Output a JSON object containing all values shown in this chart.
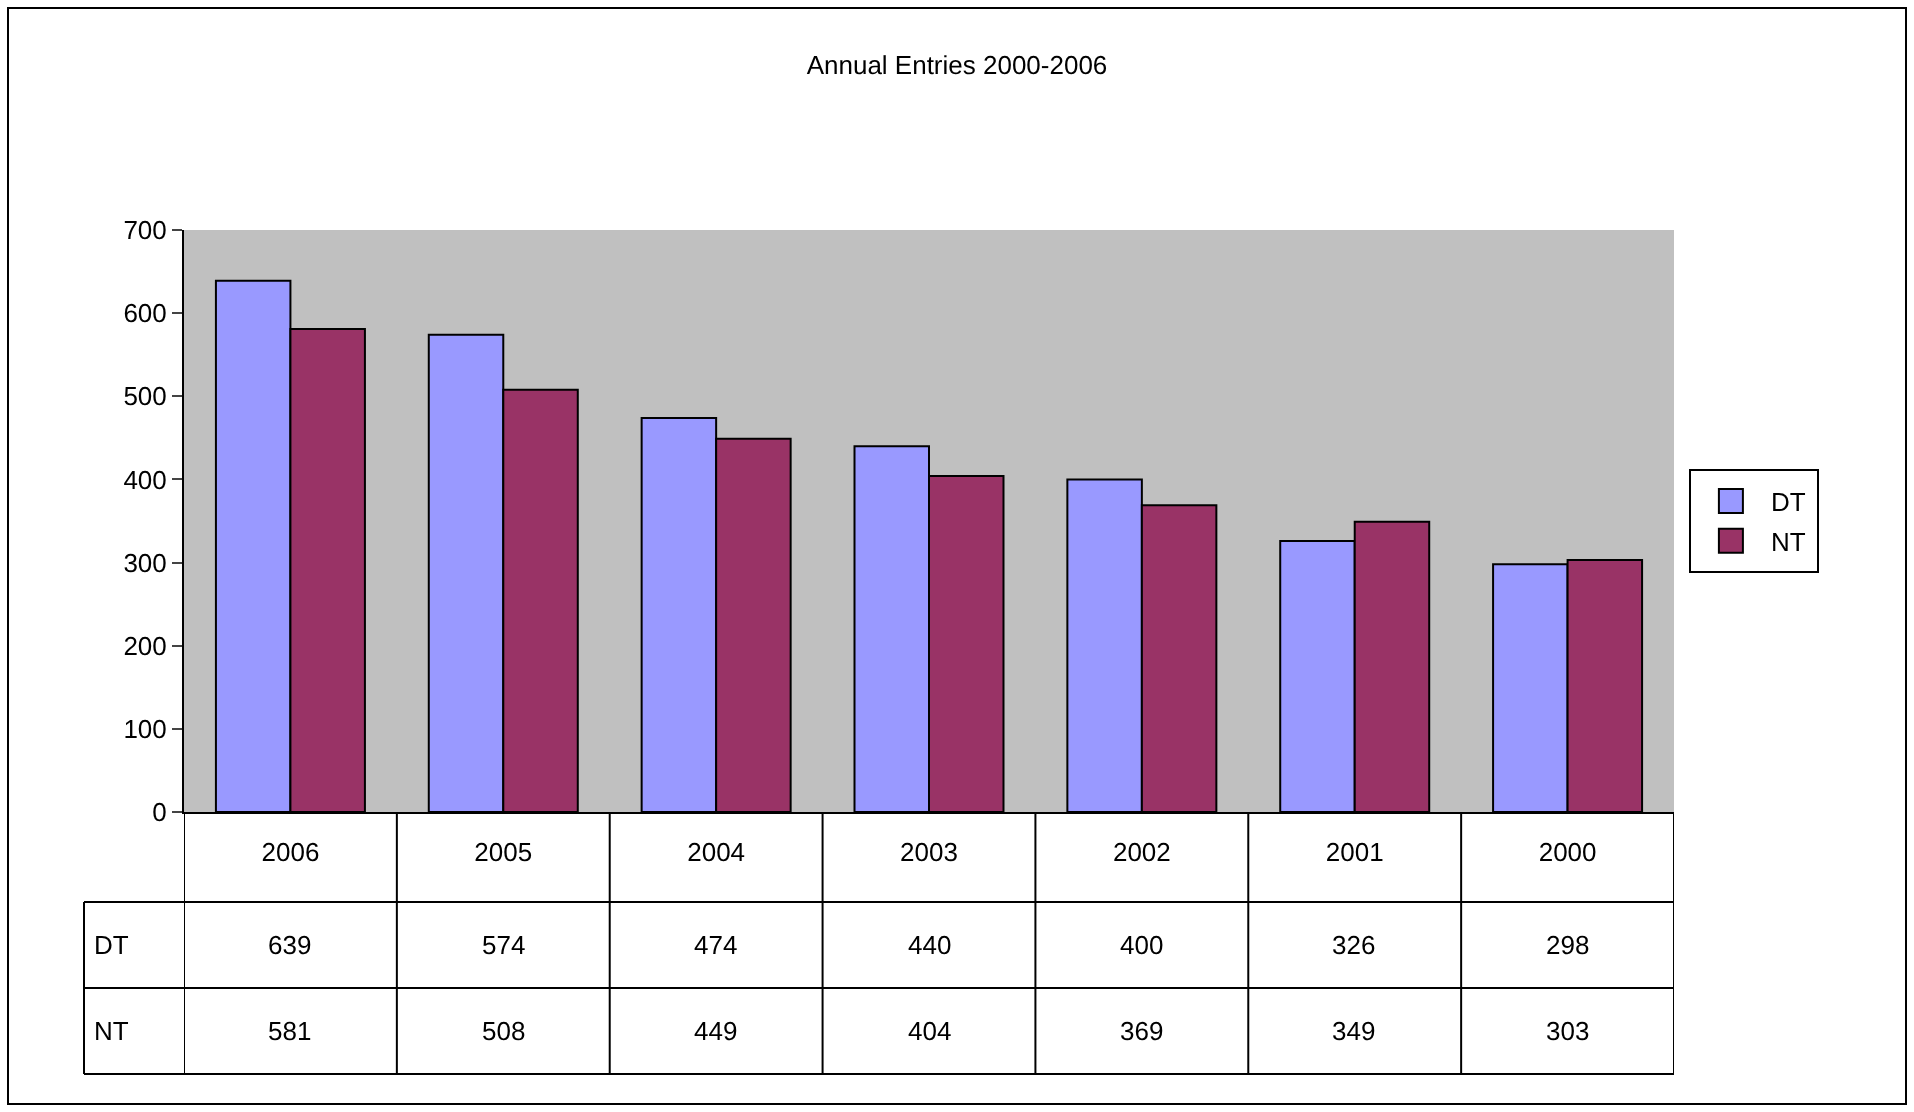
{
  "chart_data": {
    "type": "bar",
    "title": "Annual Entries 2000-2006",
    "categories": [
      "2006",
      "2005",
      "2004",
      "2003",
      "2002",
      "2001",
      "2000"
    ],
    "series": [
      {
        "name": "DT",
        "color": "#9999ff",
        "values": [
          639,
          574,
          474,
          440,
          400,
          326,
          298
        ]
      },
      {
        "name": "NT",
        "color": "#993366",
        "values": [
          581,
          508,
          449,
          404,
          369,
          349,
          303
        ]
      }
    ],
    "ylim": [
      0,
      700
    ],
    "yticks": [
      0,
      100,
      200,
      300,
      400,
      500,
      600,
      700
    ],
    "grid": false,
    "legend": "right",
    "data_labels": true
  }
}
